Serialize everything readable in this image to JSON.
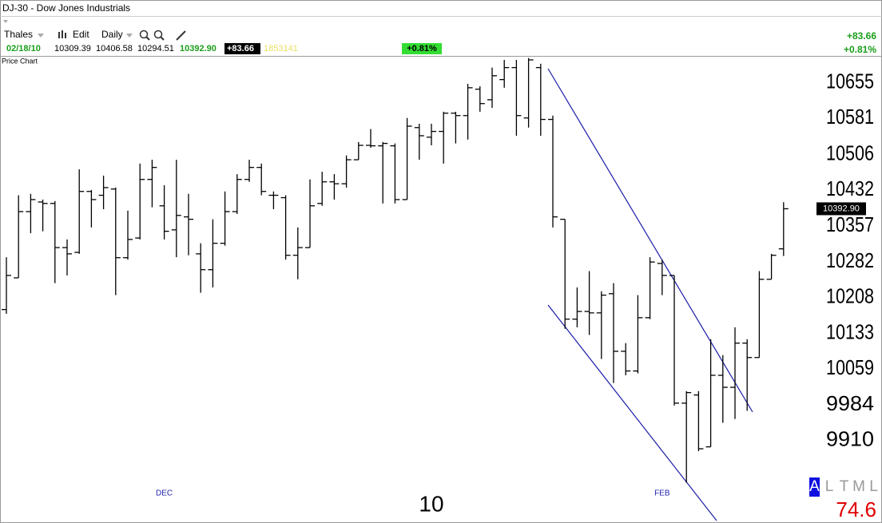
{
  "header": {
    "title": "DJ-30 - Dow Jones Industrials",
    "toolbar": {
      "account": "Thales",
      "edit": "Edit",
      "period": "Daily"
    },
    "quote": {
      "date": "02/18/10",
      "open": "10309.39",
      "high": "10406.58",
      "low": "10294.51",
      "close": "10392.90",
      "change": "+83.66",
      "volume": "1853141",
      "change_pct": "+0.81%"
    },
    "right_change": "+83.66",
    "right_change_pct": "+0.81%"
  },
  "chart_data": {
    "type": "ohlc",
    "title": "Price Chart",
    "categories": [
      null,
      null,
      null,
      null,
      null,
      null,
      null,
      null,
      null,
      null,
      null,
      null,
      null,
      "DEC",
      null,
      null,
      null,
      null,
      null,
      null,
      null,
      null,
      null,
      null,
      null,
      null,
      null,
      null,
      null,
      null,
      null,
      null,
      null,
      null,
      null,
      "10",
      null,
      null,
      null,
      null,
      null,
      null,
      null,
      null,
      null,
      null,
      null,
      null,
      null,
      null,
      null,
      null,
      null,
      null,
      "FEB",
      null,
      null,
      null,
      null,
      null,
      null,
      null,
      null,
      null,
      null
    ],
    "open": [
      10183,
      10249,
      10387,
      10407,
      10404,
      10312,
      10302,
      10429,
      10421,
      10434,
      10291,
      10332,
      10454,
      10399,
      10349,
      10376,
      10299,
      10266,
      10321,
      10387,
      10454,
      10479,
      10421,
      10416,
      10296,
      10312,
      10404,
      10449,
      10445,
      10495,
      10525,
      10524,
      10524,
      10412,
      10562,
      10542,
      10554,
      10592,
      10587,
      10642,
      10620,
      10662,
      10687,
      10582,
      10687,
      10579,
      10371,
      10163,
      10179,
      10176,
      10216,
      10096,
      10055,
      10166,
      10279,
      10254,
      9988,
      10005,
      9897,
      10046,
      10021,
      10113,
      10083,
      10246,
      10309.39
    ],
    "high": [
      10292,
      10421,
      10424,
      10412,
      10409,
      10329,
      10475,
      10432,
      10462,
      10437,
      10389,
      10487,
      10495,
      10442,
      10495,
      10424,
      10321,
      10371,
      10429,
      10465,
      10495,
      10487,
      10429,
      10421,
      10354,
      10454,
      10470,
      10465,
      10504,
      10532,
      10559,
      10532,
      10529,
      10582,
      10570,
      10570,
      10595,
      10595,
      10653,
      10648,
      10687,
      10703,
      10703,
      10707,
      10695,
      10587,
      10371,
      10229,
      10263,
      10221,
      10238,
      10113,
      10213,
      10292,
      10287,
      10254,
      10013,
      10013,
      10121,
      10088,
      10146,
      10121,
      10263,
      10299,
      10406.58
    ],
    "low": [
      10174,
      10249,
      10342,
      10346,
      10238,
      10254,
      10299,
      10354,
      10392,
      10213,
      10287,
      10329,
      10396,
      10329,
      10292,
      10296,
      10218,
      10229,
      10316,
      10382,
      10449,
      10421,
      10392,
      10287,
      10246,
      10312,
      10399,
      10412,
      10437,
      10495,
      10520,
      10404,
      10404,
      10412,
      10495,
      10525,
      10487,
      10529,
      10537,
      10595,
      10603,
      10645,
      10545,
      10562,
      10545,
      10354,
      10143,
      10146,
      10130,
      10080,
      10030,
      10046,
      10050,
      10163,
      10213,
      9983,
      9822,
      9888,
      9897,
      9947,
      9955,
      9972,
      10083,
      10246,
      10294.51
    ],
    "close": [
      10254,
      10387,
      10412,
      10404,
      10312,
      10299,
      10429,
      10412,
      10437,
      10291,
      10329,
      10454,
      10479,
      10346,
      10379,
      10371,
      10266,
      10321,
      10387,
      10454,
      10479,
      10429,
      10421,
      10296,
      10312,
      10399,
      10449,
      10445,
      10495,
      10525,
      10524,
      10529,
      10412,
      10565,
      10545,
      10554,
      10592,
      10587,
      10645,
      10612,
      10670,
      10687,
      10587,
      10703,
      10579,
      10376,
      10163,
      10179,
      10176,
      10213,
      10096,
      10055,
      10166,
      10282,
      10254,
      9988,
      10010,
      9893,
      10046,
      10021,
      10113,
      10083,
      10246,
      10296,
      10392.9
    ],
    "color": "#000000",
    "ylim": [
      9740,
      10708
    ],
    "yticks": [
      10655,
      10581,
      10506,
      10432,
      10357,
      10282,
      10208,
      10133,
      10059,
      9984,
      9910
    ],
    "last_label": "10392.90"
  },
  "footer": {
    "indicators": [
      "A",
      "L",
      "T",
      "M",
      "L"
    ],
    "value": "74.6"
  }
}
